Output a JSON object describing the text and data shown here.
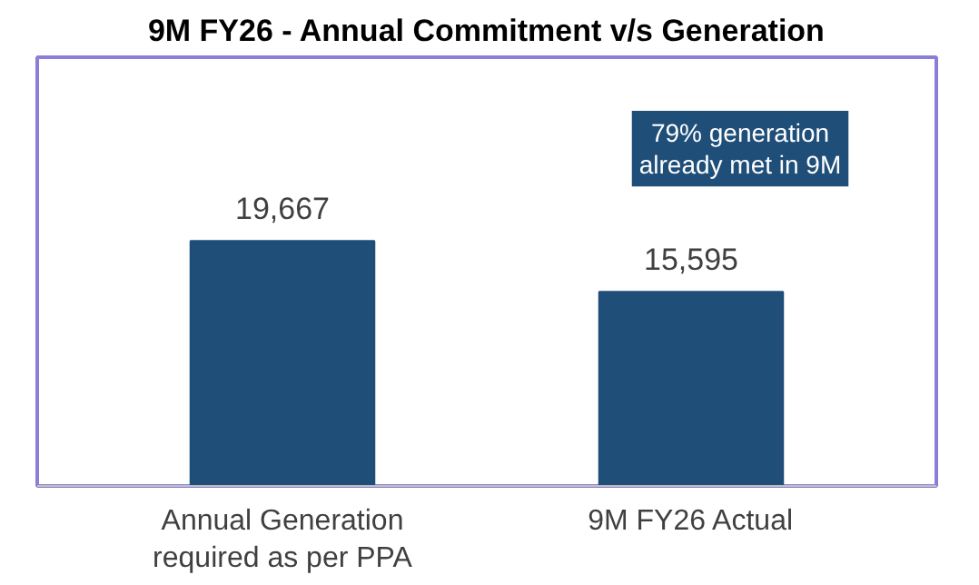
{
  "chart_data": {
    "type": "bar",
    "title": "9M FY26 - Annual Commitment v/s Generation",
    "categories": [
      "Annual Generation required as per PPA",
      "9M FY26 Actual"
    ],
    "values": [
      19667,
      15595
    ],
    "value_labels": [
      "19,667",
      "15,595"
    ],
    "color": "#1f4e79",
    "annotations": [
      "79% generation already met in 9M"
    ],
    "grid": false
  }
}
